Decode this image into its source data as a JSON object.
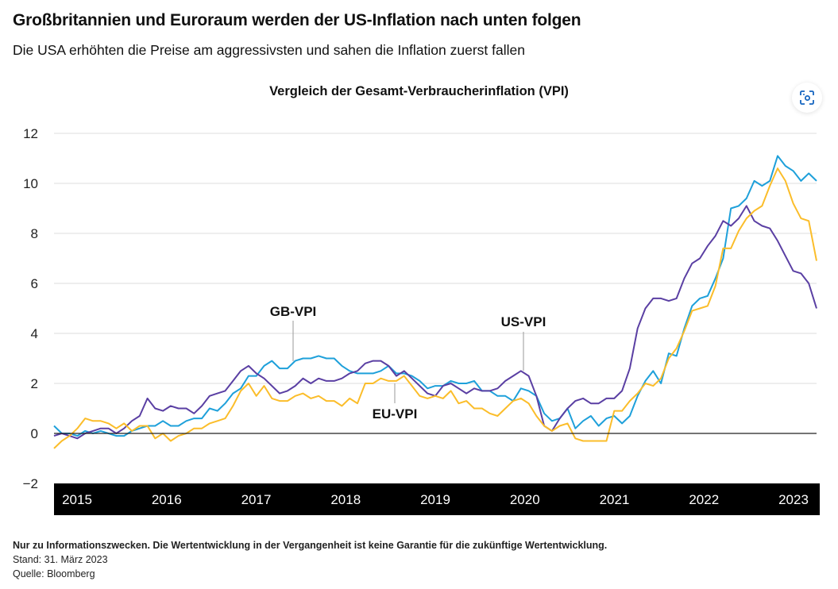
{
  "header": {
    "title": "Großbritannien und Euroraum werden der US-Inflation nach unten folgen",
    "subtitle": "Die USA erhöhten die Preise am aggressivsten und sahen die Inflation zuerst fallen",
    "expand_icon": "focus-scan-icon"
  },
  "chart_data": {
    "type": "line",
    "title": "Vergleich der Gesamt-Verbraucherinflation (VPI)",
    "xlabel": "",
    "ylabel": "",
    "x_start": "2015-01",
    "x_end": "2023-03",
    "frequency": "monthly",
    "ylim": [
      -2,
      12
    ],
    "yticks": [
      "12",
      "10",
      "8",
      "6",
      "4",
      "2",
      "0",
      "−2"
    ],
    "ytick_values": [
      12,
      10,
      8,
      6,
      4,
      2,
      0,
      -2
    ],
    "xtick_labels": [
      "2015",
      "2016",
      "2017",
      "2018",
      "2019",
      "2020",
      "2021",
      "2022",
      "2023"
    ],
    "grid": true,
    "series": [
      {
        "name": "GB-VPI",
        "color": "#1ea0da",
        "values": [
          0.3,
          0.0,
          0.0,
          -0.1,
          0.1,
          0.0,
          0.1,
          0.0,
          -0.1,
          -0.1,
          0.1,
          0.2,
          0.3,
          0.3,
          0.5,
          0.3,
          0.3,
          0.5,
          0.6,
          0.6,
          1.0,
          0.9,
          1.2,
          1.6,
          1.8,
          2.3,
          2.3,
          2.7,
          2.9,
          2.6,
          2.6,
          2.9,
          3.0,
          3.0,
          3.1,
          3.0,
          3.0,
          2.7,
          2.5,
          2.4,
          2.4,
          2.4,
          2.5,
          2.7,
          2.4,
          2.4,
          2.3,
          2.1,
          1.8,
          1.9,
          1.9,
          2.1,
          2.0,
          2.0,
          2.1,
          1.7,
          1.7,
          1.5,
          1.5,
          1.3,
          1.8,
          1.7,
          1.5,
          0.8,
          0.5,
          0.6,
          1.0,
          0.2,
          0.5,
          0.7,
          0.3,
          0.6,
          0.7,
          0.4,
          0.7,
          1.5,
          2.1,
          2.5,
          2.0,
          3.2,
          3.1,
          4.2,
          5.1,
          5.4,
          5.5,
          6.2,
          7.0,
          9.0,
          9.1,
          9.4,
          10.1,
          9.9,
          10.1,
          11.1,
          10.7,
          10.5,
          10.1,
          10.4,
          10.1
        ]
      },
      {
        "name": "US-VPI",
        "color": "#5a3fa3",
        "values": [
          -0.1,
          0.0,
          -0.1,
          -0.2,
          0.0,
          0.1,
          0.2,
          0.2,
          0.0,
          0.2,
          0.5,
          0.7,
          1.4,
          1.0,
          0.9,
          1.1,
          1.0,
          1.0,
          0.8,
          1.1,
          1.5,
          1.6,
          1.7,
          2.1,
          2.5,
          2.7,
          2.4,
          2.2,
          1.9,
          1.6,
          1.7,
          1.9,
          2.2,
          2.0,
          2.2,
          2.1,
          2.1,
          2.2,
          2.4,
          2.5,
          2.8,
          2.9,
          2.9,
          2.7,
          2.3,
          2.5,
          2.2,
          1.9,
          1.6,
          1.5,
          1.9,
          2.0,
          1.8,
          1.6,
          1.8,
          1.7,
          1.7,
          1.8,
          2.1,
          2.3,
          2.5,
          2.3,
          1.5,
          0.3,
          0.1,
          0.6,
          1.0,
          1.3,
          1.4,
          1.2,
          1.2,
          1.4,
          1.4,
          1.7,
          2.6,
          4.2,
          5.0,
          5.4,
          5.4,
          5.3,
          5.4,
          6.2,
          6.8,
          7.0,
          7.5,
          7.9,
          8.5,
          8.3,
          8.6,
          9.1,
          8.5,
          8.3,
          8.2,
          7.7,
          7.1,
          6.5,
          6.4,
          6.0,
          5.0
        ]
      },
      {
        "name": "EU-VPI",
        "color": "#fbbd2a",
        "values": [
          -0.6,
          -0.3,
          -0.1,
          0.2,
          0.6,
          0.5,
          0.5,
          0.4,
          0.2,
          0.4,
          0.1,
          0.3,
          0.3,
          -0.2,
          0.0,
          -0.3,
          -0.1,
          0.0,
          0.2,
          0.2,
          0.4,
          0.5,
          0.6,
          1.1,
          1.7,
          2.0,
          1.5,
          1.9,
          1.4,
          1.3,
          1.3,
          1.5,
          1.6,
          1.4,
          1.5,
          1.3,
          1.3,
          1.1,
          1.4,
          1.2,
          2.0,
          2.0,
          2.2,
          2.1,
          2.1,
          2.3,
          1.9,
          1.5,
          1.4,
          1.5,
          1.4,
          1.7,
          1.2,
          1.3,
          1.0,
          1.0,
          0.8,
          0.7,
          1.0,
          1.3,
          1.4,
          1.2,
          0.7,
          0.3,
          0.1,
          0.3,
          0.4,
          -0.2,
          -0.3,
          -0.3,
          -0.3,
          -0.3,
          0.9,
          0.9,
          1.3,
          1.6,
          2.0,
          1.9,
          2.2,
          3.0,
          3.4,
          4.1,
          4.9,
          5.0,
          5.1,
          5.9,
          7.4,
          7.4,
          8.1,
          8.6,
          8.9,
          9.1,
          9.9,
          10.6,
          10.1,
          9.2,
          8.6,
          8.5,
          6.9
        ]
      }
    ],
    "annotations": [
      "GB-VPI",
      "US-VPI",
      "EU-VPI"
    ]
  },
  "footer": {
    "disclaimer": "Nur zu Informationszwecken. Die Wertentwicklung in der Vergangenheit ist keine Garantie für die zukünftige Wertentwicklung.",
    "date": "Stand: 31. März 2023",
    "source": "Quelle: Bloomberg"
  }
}
